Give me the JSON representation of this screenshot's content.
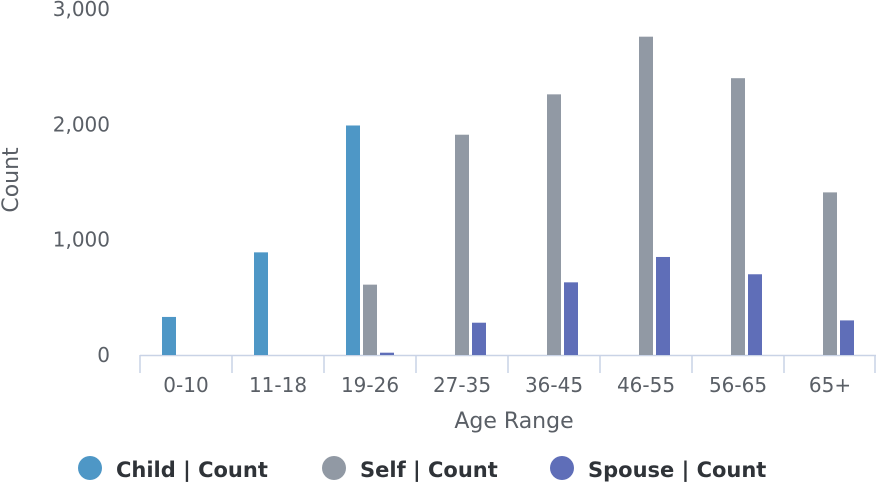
{
  "chart_data": {
    "type": "bar",
    "xlabel": "Age Range",
    "ylabel": "Count",
    "categories": [
      "0-10",
      "11-18",
      "19-26",
      "27-35",
      "36-45",
      "46-55",
      "56-65",
      "65+"
    ],
    "ylim": [
      0,
      3000
    ],
    "yticks": [
      0,
      1000,
      2000,
      3000
    ],
    "ytick_labels": [
      "0",
      "1,000",
      "2,000",
      "3,000"
    ],
    "grid": false,
    "legend_position": "bottom",
    "series": [
      {
        "name": "Child | Count",
        "color": "#4e97c6",
        "values": [
          330,
          890,
          1990,
          0,
          0,
          0,
          0,
          0
        ]
      },
      {
        "name": "Self | Count",
        "color": "#9199a4",
        "values": [
          0,
          0,
          610,
          1910,
          2260,
          2760,
          2400,
          1410
        ]
      },
      {
        "name": "Spouse | Count",
        "color": "#5f6eb8",
        "values": [
          0,
          0,
          20,
          280,
          630,
          850,
          700,
          300
        ]
      }
    ]
  }
}
